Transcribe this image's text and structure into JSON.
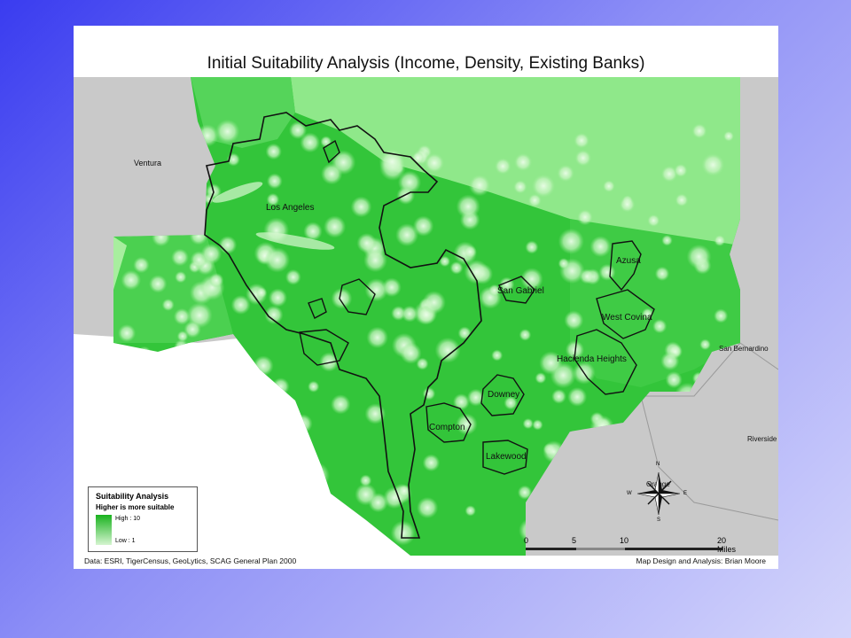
{
  "map": {
    "title": "Initial Suitability Analysis (Income, Density, Existing Banks)",
    "place_labels": {
      "ventura": "Ventura",
      "los_angeles": "Los Angeles",
      "azusa": "Azusa",
      "san_gabriel": "San Gabriel",
      "west_covina": "West Covina",
      "hacienda_heights": "Hacienda Heights",
      "san_bernardino": "San Bernardino",
      "downey": "Downey",
      "compton": "Compton",
      "lakewood": "Lakewood",
      "riverside": "Riverside",
      "orange": "Orange"
    },
    "legend": {
      "title": "Suitability Analysis",
      "subtitle": "Higher is more suitable",
      "high_label": "High : 10",
      "low_label": "Low : 1",
      "high_color": "#19b21e",
      "low_color": "#d5f5d0"
    },
    "scale": {
      "ticks": [
        "0",
        "5",
        "10",
        "20 Miles"
      ]
    },
    "compass": {
      "n": "N",
      "s": "S",
      "e": "E",
      "w": "W"
    },
    "footer_left": "Data: ESRI, TigerCensus, GeoLytics, SCAG General Plan 2000",
    "footer_right": "Map Design and Analysis: Brian Moore",
    "colors": {
      "background_land": "#c9c9c9",
      "ocean": "#ffffff",
      "suitability_high": "#19b21e",
      "suitability_mid": "#4cd24c",
      "suitability_low": "#8fe88a"
    }
  }
}
